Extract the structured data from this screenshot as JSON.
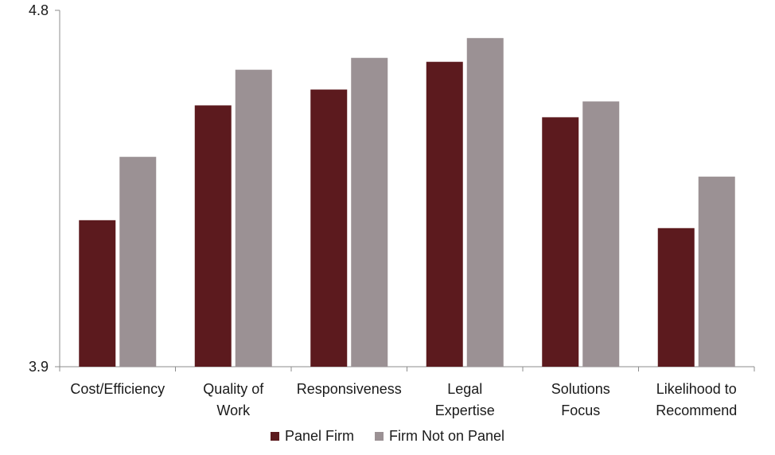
{
  "chart_data": {
    "type": "bar",
    "categories": [
      [
        "Cost/Efficiency"
      ],
      [
        "Quality of",
        "Work"
      ],
      [
        "Responsiveness"
      ],
      [
        "Legal",
        "Expertise"
      ],
      [
        "Solutions",
        "Focus"
      ],
      [
        "Likelihood to",
        "Recommend"
      ]
    ],
    "series": [
      {
        "name": "Panel Firm",
        "color": "#5c1a1e",
        "values": [
          4.27,
          4.56,
          4.6,
          4.67,
          4.53,
          4.25
        ]
      },
      {
        "name": "Firm Not on Panel",
        "color": "#9b9194",
        "values": [
          4.43,
          4.65,
          4.68,
          4.73,
          4.57,
          4.38
        ]
      }
    ],
    "ylim": [
      3.9,
      4.8
    ],
    "yticks": [
      "4.8",
      "3.9"
    ],
    "title": "",
    "xlabel": "",
    "ylabel": "",
    "legend_position": "bottom"
  }
}
